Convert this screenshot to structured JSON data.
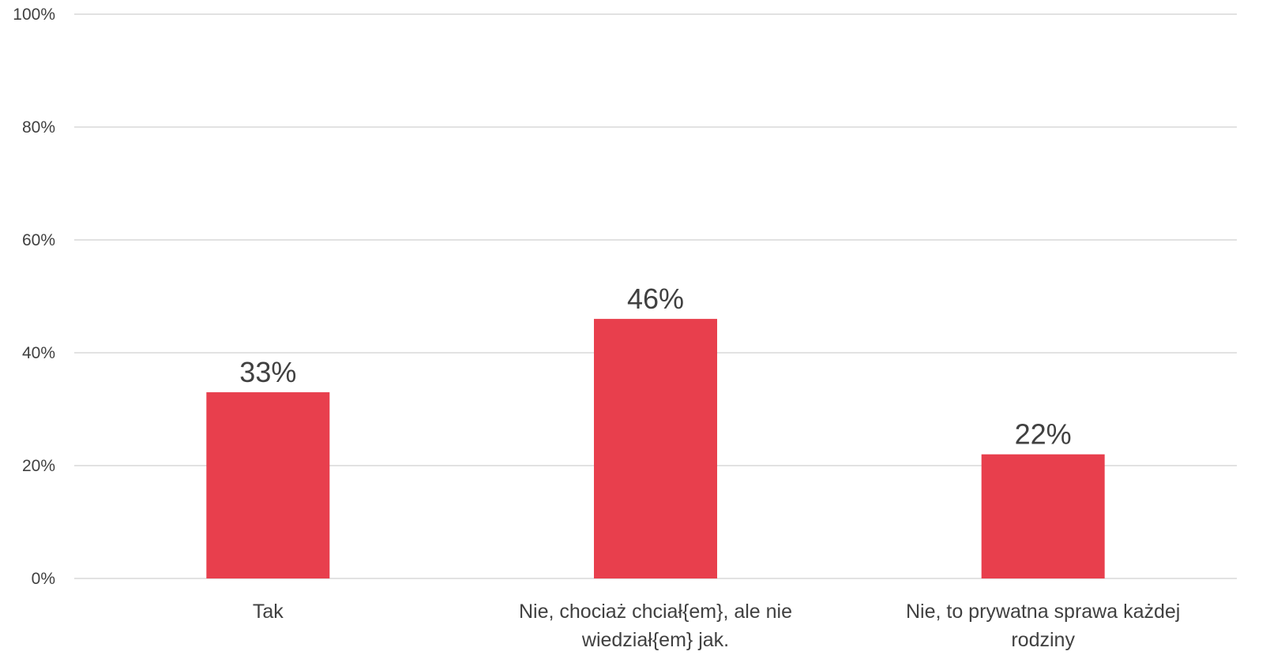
{
  "chart_data": {
    "type": "bar",
    "categories": [
      [
        "Tak"
      ],
      [
        "Nie, chociaż chciał{em}, ale nie",
        "wiedział{em} jak."
      ],
      [
        "Nie, to prywatna sprawa każdej",
        "rodziny"
      ]
    ],
    "values": [
      33,
      46,
      22
    ],
    "data_labels": [
      "33%",
      "46%",
      "22%"
    ],
    "ylim": [
      0,
      100
    ],
    "yticks": [
      0,
      20,
      40,
      60,
      80,
      100
    ],
    "ytick_labels": [
      "0%",
      "20%",
      "40%",
      "60%",
      "80%",
      "100%"
    ],
    "title": "",
    "xlabel": "",
    "ylabel": "",
    "grid": true,
    "legend": "none",
    "colors": {
      "bar": "#E83F4D",
      "grid": "#D9D9D9",
      "text": "#404040"
    }
  }
}
